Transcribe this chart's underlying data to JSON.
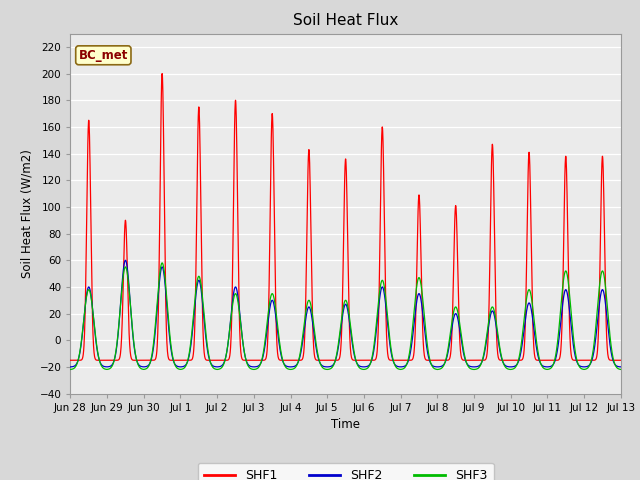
{
  "title": "Soil Heat Flux",
  "ylabel": "Soil Heat Flux (W/m2)",
  "xlabel": "Time",
  "ylim": [
    -40,
    230
  ],
  "yticks": [
    -40,
    -20,
    0,
    20,
    40,
    60,
    80,
    100,
    120,
    140,
    160,
    180,
    200,
    220
  ],
  "background_color": "#d8d8d8",
  "plot_bg_color": "#ebebeb",
  "series_colors": {
    "SHF1": "#ff0000",
    "SHF2": "#0000cc",
    "SHF3": "#00bb00"
  },
  "n_days": 15,
  "shf1_peaks": [
    165,
    90,
    200,
    175,
    180,
    170,
    143,
    136,
    160,
    109,
    101,
    147,
    141,
    138,
    138
  ],
  "shf2_peaks": [
    40,
    60,
    55,
    45,
    40,
    30,
    25,
    27,
    40,
    35,
    20,
    22,
    28,
    38,
    38
  ],
  "shf3_peaks": [
    38,
    55,
    58,
    48,
    35,
    35,
    30,
    30,
    45,
    47,
    25,
    25,
    38,
    52,
    52
  ],
  "shf1_sigma": 0.055,
  "shf2_sigma": 0.13,
  "shf3_sigma": 0.14,
  "night1": -15,
  "night2": -20,
  "night3": -22,
  "tick_labels": [
    "Jun 28",
    "Jun 29",
    "Jun 30",
    "Jul 1",
    "Jul 2",
    "Jul 3",
    "Jul 4",
    "Jul 5",
    "Jul 6",
    "Jul 7",
    "Jul 8",
    "Jul 9",
    "Jul 10",
    "Jul 11",
    "Jul 12",
    "Jul 13"
  ]
}
